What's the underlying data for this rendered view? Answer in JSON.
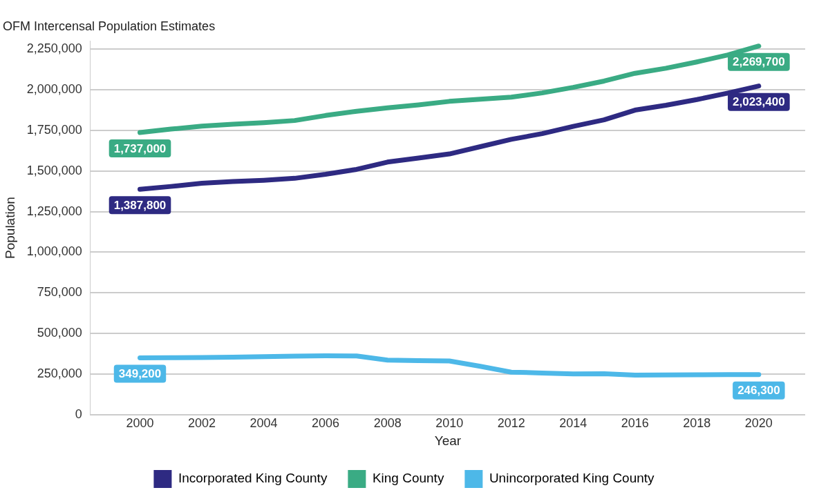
{
  "chart_data": {
    "type": "line",
    "title": "OFM Intercensal Population Estimates",
    "xlabel": "Year",
    "ylabel": "Population",
    "x": [
      2000,
      2001,
      2002,
      2003,
      2004,
      2005,
      2006,
      2007,
      2008,
      2009,
      2010,
      2011,
      2012,
      2013,
      2014,
      2015,
      2016,
      2017,
      2018,
      2019,
      2020
    ],
    "xlim": [
      1998.4,
      2021.5
    ],
    "xticks": [
      2000,
      2002,
      2004,
      2006,
      2008,
      2010,
      2012,
      2014,
      2016,
      2018,
      2020
    ],
    "ylim": [
      0,
      2300000
    ],
    "yticks": [
      {
        "value": 0,
        "label": "0"
      },
      {
        "value": 250000,
        "label": "250,000"
      },
      {
        "value": 500000,
        "label": "500,000"
      },
      {
        "value": 750000,
        "label": "750,000"
      },
      {
        "value": 1000000,
        "label": "1,000,000"
      },
      {
        "value": 1250000,
        "label": "1,250,000"
      },
      {
        "value": 1500000,
        "label": "1,500,000"
      },
      {
        "value": 1750000,
        "label": "1,750,000"
      },
      {
        "value": 2000000,
        "label": "2,000,000"
      },
      {
        "value": 2250000,
        "label": "2,250,000"
      }
    ],
    "grid": "y",
    "legend": "bottom",
    "marker": "none",
    "line_style": "solid",
    "series": [
      {
        "name": "Incorporated King County",
        "color": "#2e2a82",
        "values": [
          1387800,
          1405000,
          1425000,
          1435000,
          1443000,
          1455000,
          1480000,
          1510000,
          1555000,
          1580000,
          1605000,
          1650000,
          1695000,
          1730000,
          1775000,
          1815000,
          1875000,
          1905000,
          1940000,
          1980000,
          2023400
        ],
        "value_labels": [
          "1,387,800",
          null,
          null,
          null,
          null,
          null,
          null,
          null,
          null,
          null,
          null,
          null,
          null,
          null,
          null,
          null,
          null,
          null,
          null,
          null,
          "2,023,400"
        ]
      },
      {
        "name": "King County",
        "color": "#3aab84",
        "values": [
          1737000,
          1758000,
          1776000,
          1788000,
          1798000,
          1811000,
          1842000,
          1868000,
          1889000,
          1907000,
          1929000,
          1942000,
          1955000,
          1981000,
          2015000,
          2054000,
          2102000,
          2133000,
          2172000,
          2215000,
          2269700
        ],
        "value_labels": [
          "1,737,000",
          null,
          null,
          null,
          null,
          null,
          null,
          null,
          null,
          null,
          null,
          null,
          null,
          null,
          null,
          null,
          null,
          null,
          null,
          null,
          "2,269,700"
        ]
      },
      {
        "name": "Unincorporated King County",
        "color": "#4db8e8",
        "values": [
          349200,
          350000,
          351000,
          353000,
          357000,
          360000,
          362000,
          361000,
          335000,
          332000,
          330000,
          297000,
          261000,
          256000,
          250000,
          251000,
          243000,
          244000,
          245000,
          246000,
          246300
        ],
        "value_labels": [
          "349,200",
          null,
          null,
          null,
          null,
          null,
          null,
          null,
          null,
          null,
          null,
          null,
          null,
          null,
          null,
          null,
          null,
          null,
          null,
          null,
          "246,300"
        ]
      }
    ]
  }
}
